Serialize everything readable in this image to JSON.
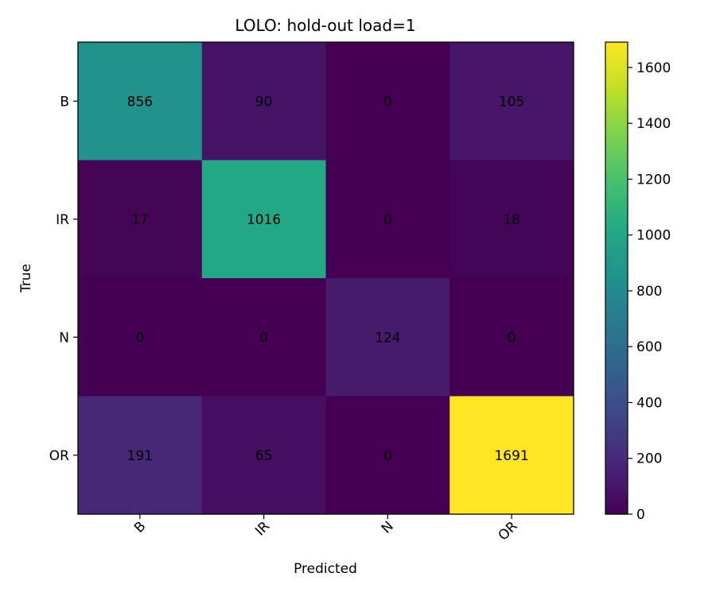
{
  "chart_data": {
    "type": "heatmap",
    "title": "LOLO: hold-out load=1",
    "xlabel": "Predicted",
    "ylabel": "True",
    "x_categories": [
      "B",
      "IR",
      "N",
      "OR"
    ],
    "y_categories": [
      "B",
      "IR",
      "N",
      "OR"
    ],
    "values": [
      [
        856,
        90,
        0,
        105
      ],
      [
        17,
        1016,
        0,
        18
      ],
      [
        0,
        0,
        124,
        0
      ],
      [
        191,
        65,
        0,
        1691
      ]
    ],
    "colorscale": "viridis",
    "vmin": 0,
    "vmax": 1691,
    "colorbar_ticks": [
      0,
      200,
      400,
      600,
      800,
      1000,
      1200,
      1400,
      1600
    ],
    "grid": false
  }
}
